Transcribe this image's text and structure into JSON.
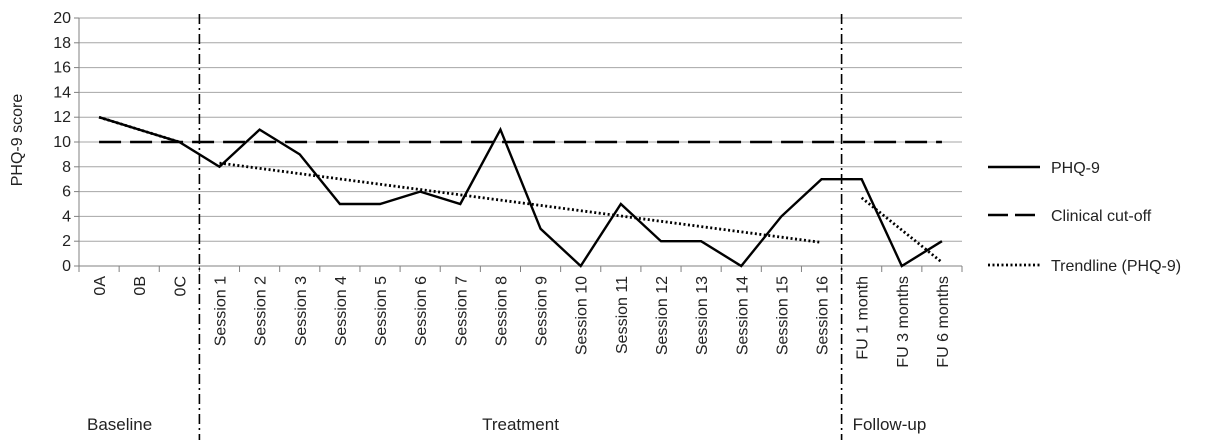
{
  "chart_data": {
    "type": "line",
    "ylabel": "PHQ-9 score",
    "xlabel": "",
    "ylim": [
      0,
      20
    ],
    "yticks": [
      0,
      2,
      4,
      6,
      8,
      10,
      12,
      14,
      16,
      18,
      20
    ],
    "grid": true,
    "legend_position": "right",
    "categories": [
      "0A",
      "0B",
      "0C",
      "Session 1",
      "Session 2",
      "Session 3",
      "Session 4",
      "Session 5",
      "Session 6",
      "Session 7",
      "Session 8",
      "Session 9",
      "Session 10",
      "Session 11",
      "Session 12",
      "Session 13",
      "Session 14",
      "Session 15",
      "Session 16",
      "FU 1 month",
      "FU 3 months",
      "FU 6 months"
    ],
    "series": [
      {
        "name": "PHQ-9",
        "style": "solid",
        "values": [
          12,
          11,
          10,
          8,
          11,
          9,
          5,
          5,
          6,
          5,
          11,
          3,
          0,
          5,
          2,
          2,
          0,
          4,
          7,
          7,
          0,
          2
        ]
      },
      {
        "name": "Clinical cut-off",
        "style": "dashed",
        "values": [
          10,
          10,
          10,
          10,
          10,
          10,
          10,
          10,
          10,
          10,
          10,
          10,
          10,
          10,
          10,
          10,
          10,
          10,
          10,
          10,
          10,
          10
        ]
      },
      {
        "name": "Trendline (PHQ-9)",
        "style": "dotted",
        "segments": [
          {
            "from": "0A",
            "to": "0C",
            "y_start": 12,
            "y_end": 10
          },
          {
            "from": "Session 1",
            "to": "Session 16",
            "y_start": 8.3,
            "y_end": 1.9
          },
          {
            "from": "FU 1 month",
            "to": "FU 6 months",
            "y_start": 5.5,
            "y_end": 0.3
          }
        ]
      }
    ],
    "phases": [
      {
        "label": "Baseline",
        "start": "0A",
        "end": "0C"
      },
      {
        "label": "Treatment",
        "start": "Session 1",
        "end": "Session 16"
      },
      {
        "label": "Follow-up",
        "start": "FU 1 month",
        "end": "FU 6 months"
      }
    ],
    "phase_separator_style": "dash-dot",
    "colors": {
      "line": "#000000",
      "grid": "#a6a6a6",
      "axis": "#808080",
      "text": "#222222"
    }
  }
}
